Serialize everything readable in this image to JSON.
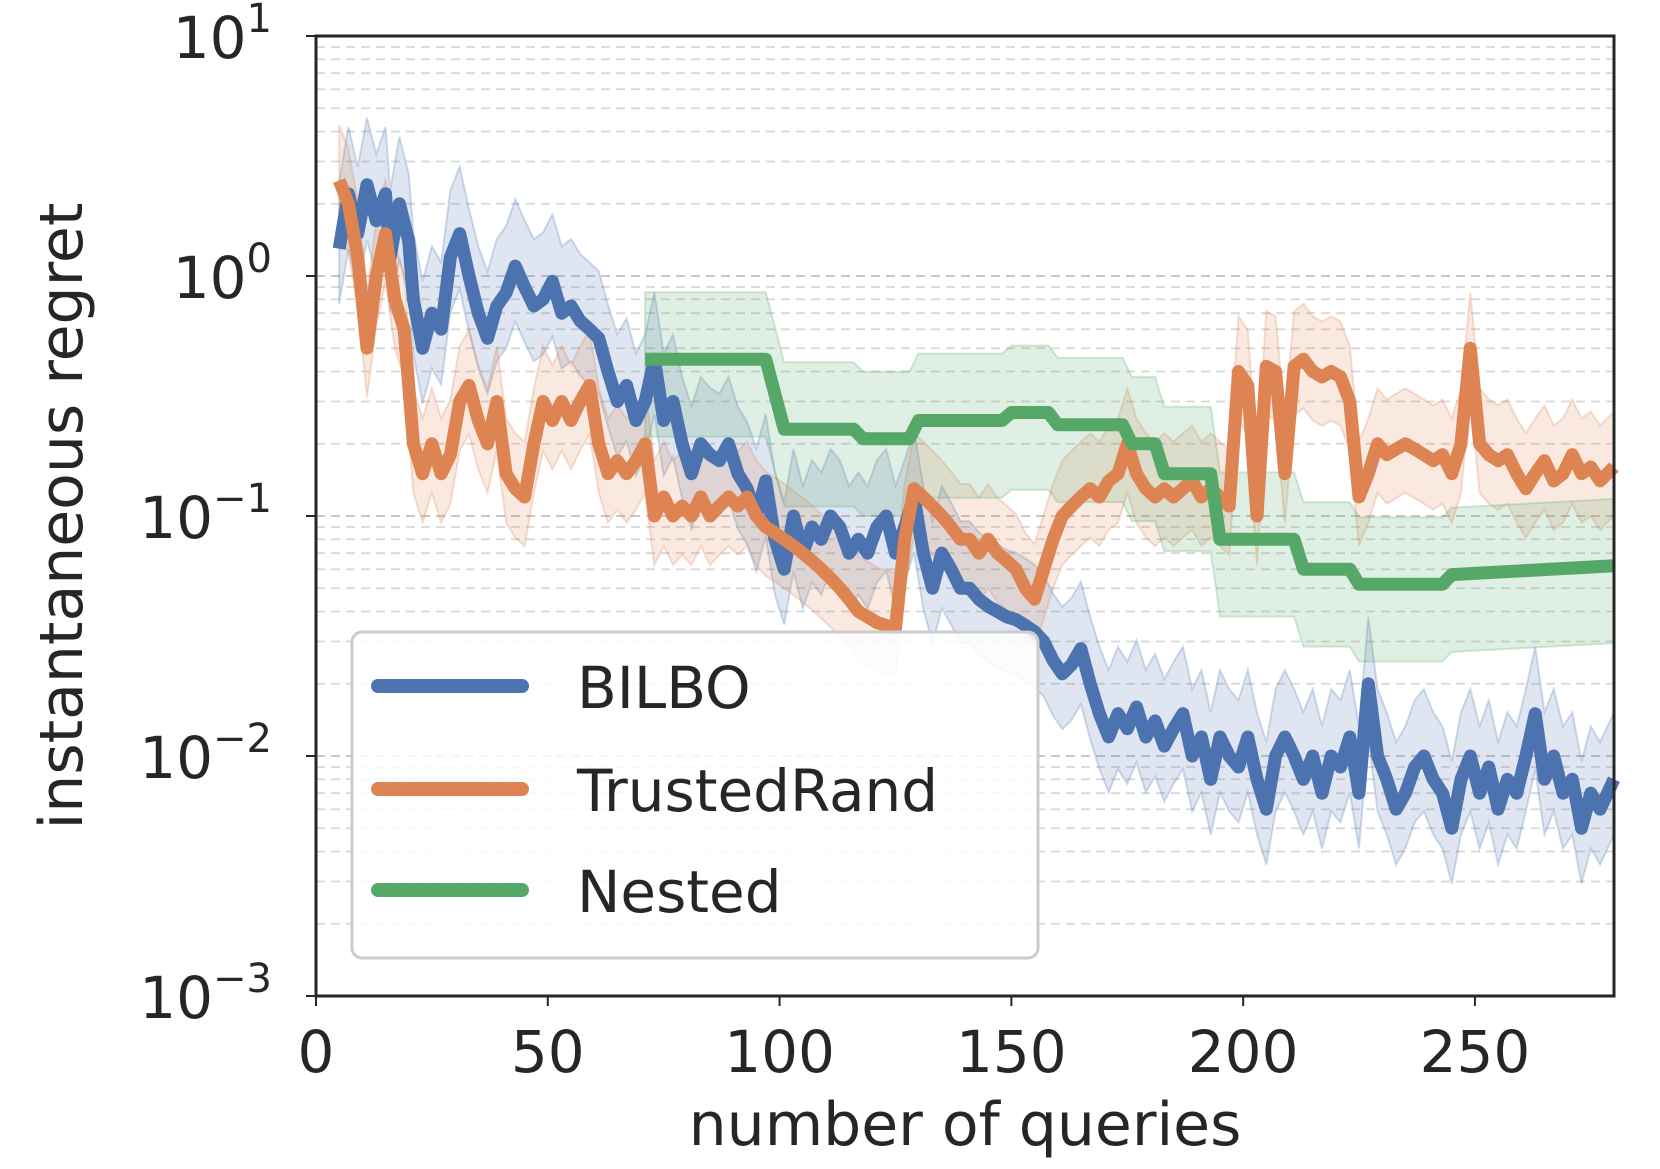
{
  "chart_data": {
    "type": "line",
    "title": "",
    "xlabel": "number of queries",
    "ylabel": "instantaneous regret",
    "xscale": "linear",
    "yscale": "log",
    "xlim": [
      0,
      280
    ],
    "ylim": [
      0.001,
      10
    ],
    "xticks": [
      "0",
      "50",
      "100",
      "150",
      "200",
      "250"
    ],
    "xtick_values": [
      0,
      50,
      100,
      150,
      200,
      250
    ],
    "yticks": [
      {
        "base": "10",
        "exp": "−3",
        "value": 0.001
      },
      {
        "base": "10",
        "exp": "−2",
        "value": 0.01
      },
      {
        "base": "10",
        "exp": "−1",
        "value": 0.1
      },
      {
        "base": "10",
        "exp": "0",
        "value": 1
      },
      {
        "base": "10",
        "exp": "1",
        "value": 10
      }
    ],
    "grid": "horizontal dashed (major and minor)",
    "legend_position": "lower-left",
    "series": [
      {
        "name": "BILBO",
        "color": "#4c72b0",
        "band": "shaded uncertainty band",
        "points": [
          [
            5,
            1.3
          ],
          [
            7,
            2.2
          ],
          [
            9,
            1.5
          ],
          [
            11,
            2.4
          ],
          [
            13,
            1.7
          ],
          [
            15,
            2.2
          ],
          [
            16,
            1.2
          ],
          [
            18,
            2.0
          ],
          [
            20,
            1.4
          ],
          [
            21,
            0.8
          ],
          [
            23,
            0.5
          ],
          [
            25,
            0.7
          ],
          [
            27,
            0.6
          ],
          [
            29,
            1.2
          ],
          [
            31,
            1.5
          ],
          [
            33,
            1.0
          ],
          [
            35,
            0.7
          ],
          [
            37,
            0.55
          ],
          [
            39,
            0.75
          ],
          [
            41,
            0.85
          ],
          [
            43,
            1.1
          ],
          [
            45,
            0.9
          ],
          [
            47,
            0.75
          ],
          [
            49,
            0.8
          ],
          [
            51,
            0.95
          ],
          [
            53,
            0.7
          ],
          [
            55,
            0.75
          ],
          [
            57,
            0.65
          ],
          [
            59,
            0.6
          ],
          [
            61,
            0.55
          ],
          [
            63,
            0.4
          ],
          [
            65,
            0.3
          ],
          [
            67,
            0.35
          ],
          [
            69,
            0.25
          ],
          [
            71,
            0.3
          ],
          [
            73,
            0.45
          ],
          [
            75,
            0.25
          ],
          [
            77,
            0.3
          ],
          [
            79,
            0.2
          ],
          [
            81,
            0.15
          ],
          [
            83,
            0.2
          ],
          [
            85,
            0.18
          ],
          [
            87,
            0.17
          ],
          [
            89,
            0.2
          ],
          [
            91,
            0.15
          ],
          [
            93,
            0.13
          ],
          [
            95,
            0.1
          ],
          [
            97,
            0.14
          ],
          [
            99,
            0.08
          ],
          [
            101,
            0.06
          ],
          [
            103,
            0.1
          ],
          [
            105,
            0.07
          ],
          [
            107,
            0.09
          ],
          [
            109,
            0.08
          ],
          [
            111,
            0.1
          ],
          [
            113,
            0.09
          ],
          [
            115,
            0.07
          ],
          [
            117,
            0.08
          ],
          [
            119,
            0.07
          ],
          [
            121,
            0.09
          ],
          [
            123,
            0.1
          ],
          [
            125,
            0.07
          ],
          [
            127,
            0.09
          ],
          [
            129,
            0.12
          ],
          [
            131,
            0.07
          ],
          [
            133,
            0.05
          ],
          [
            135,
            0.07
          ],
          [
            137,
            0.06
          ],
          [
            139,
            0.05
          ],
          [
            141,
            0.05
          ],
          [
            143,
            0.045
          ],
          [
            145,
            0.042
          ],
          [
            147,
            0.04
          ],
          [
            149,
            0.038
          ],
          [
            151,
            0.037
          ],
          [
            153,
            0.035
          ],
          [
            155,
            0.033
          ],
          [
            157,
            0.03
          ],
          [
            159,
            0.025
          ],
          [
            161,
            0.022
          ],
          [
            163,
            0.024
          ],
          [
            165,
            0.028
          ],
          [
            167,
            0.02
          ],
          [
            169,
            0.015
          ],
          [
            171,
            0.012
          ],
          [
            173,
            0.015
          ],
          [
            175,
            0.013
          ],
          [
            177,
            0.016
          ],
          [
            179,
            0.012
          ],
          [
            181,
            0.014
          ],
          [
            183,
            0.011
          ],
          [
            185,
            0.013
          ],
          [
            187,
            0.015
          ],
          [
            189,
            0.01
          ],
          [
            191,
            0.012
          ],
          [
            193,
            0.008
          ],
          [
            195,
            0.012
          ],
          [
            197,
            0.01
          ],
          [
            199,
            0.009
          ],
          [
            201,
            0.012
          ],
          [
            203,
            0.008
          ],
          [
            205,
            0.006
          ],
          [
            207,
            0.01
          ],
          [
            209,
            0.012
          ],
          [
            211,
            0.01
          ],
          [
            213,
            0.008
          ],
          [
            215,
            0.01
          ],
          [
            217,
            0.007
          ],
          [
            219,
            0.01
          ],
          [
            221,
            0.009
          ],
          [
            223,
            0.012
          ],
          [
            225,
            0.007
          ],
          [
            227,
            0.02
          ],
          [
            229,
            0.01
          ],
          [
            231,
            0.008
          ],
          [
            233,
            0.006
          ],
          [
            235,
            0.007
          ],
          [
            237,
            0.009
          ],
          [
            239,
            0.01
          ],
          [
            241,
            0.008
          ],
          [
            243,
            0.007
          ],
          [
            245,
            0.005
          ],
          [
            247,
            0.008
          ],
          [
            249,
            0.01
          ],
          [
            251,
            0.007
          ],
          [
            253,
            0.009
          ],
          [
            255,
            0.006
          ],
          [
            257,
            0.008
          ],
          [
            259,
            0.007
          ],
          [
            261,
            0.01
          ],
          [
            263,
            0.015
          ],
          [
            265,
            0.008
          ],
          [
            267,
            0.01
          ],
          [
            269,
            0.007
          ],
          [
            271,
            0.008
          ],
          [
            273,
            0.005
          ],
          [
            275,
            0.007
          ],
          [
            277,
            0.006
          ],
          [
            280,
            0.008
          ]
        ]
      },
      {
        "name": "TrustedRand",
        "color": "#dd8452",
        "band": "shaded uncertainty band",
        "points": [
          [
            5,
            2.5
          ],
          [
            7,
            2.0
          ],
          [
            9,
            1.2
          ],
          [
            11,
            0.5
          ],
          [
            13,
            1.0
          ],
          [
            15,
            1.5
          ],
          [
            17,
            0.8
          ],
          [
            19,
            0.6
          ],
          [
            21,
            0.2
          ],
          [
            23,
            0.15
          ],
          [
            25,
            0.2
          ],
          [
            27,
            0.15
          ],
          [
            29,
            0.18
          ],
          [
            31,
            0.3
          ],
          [
            33,
            0.35
          ],
          [
            35,
            0.25
          ],
          [
            37,
            0.2
          ],
          [
            39,
            0.3
          ],
          [
            41,
            0.15
          ],
          [
            43,
            0.13
          ],
          [
            45,
            0.12
          ],
          [
            47,
            0.2
          ],
          [
            49,
            0.3
          ],
          [
            51,
            0.25
          ],
          [
            53,
            0.3
          ],
          [
            55,
            0.25
          ],
          [
            57,
            0.3
          ],
          [
            59,
            0.35
          ],
          [
            61,
            0.2
          ],
          [
            63,
            0.15
          ],
          [
            65,
            0.17
          ],
          [
            67,
            0.15
          ],
          [
            69,
            0.17
          ],
          [
            71,
            0.2
          ],
          [
            73,
            0.1
          ],
          [
            75,
            0.12
          ],
          [
            77,
            0.1
          ],
          [
            79,
            0.11
          ],
          [
            81,
            0.1
          ],
          [
            83,
            0.12
          ],
          [
            85,
            0.1
          ],
          [
            87,
            0.11
          ],
          [
            89,
            0.12
          ],
          [
            91,
            0.11
          ],
          [
            93,
            0.12
          ],
          [
            95,
            0.1
          ],
          [
            97,
            0.09
          ],
          [
            99,
            0.085
          ],
          [
            101,
            0.08
          ],
          [
            103,
            0.075
          ],
          [
            105,
            0.07
          ],
          [
            107,
            0.065
          ],
          [
            109,
            0.06
          ],
          [
            111,
            0.055
          ],
          [
            113,
            0.05
          ],
          [
            115,
            0.045
          ],
          [
            117,
            0.04
          ],
          [
            119,
            0.038
          ],
          [
            121,
            0.036
          ],
          [
            123,
            0.035
          ],
          [
            125,
            0.034
          ],
          [
            127,
            0.08
          ],
          [
            129,
            0.13
          ],
          [
            131,
            0.12
          ],
          [
            133,
            0.11
          ],
          [
            135,
            0.1
          ],
          [
            137,
            0.09
          ],
          [
            139,
            0.08
          ],
          [
            141,
            0.08
          ],
          [
            143,
            0.07
          ],
          [
            145,
            0.08
          ],
          [
            147,
            0.07
          ],
          [
            149,
            0.065
          ],
          [
            151,
            0.06
          ],
          [
            153,
            0.05
          ],
          [
            155,
            0.045
          ],
          [
            157,
            0.06
          ],
          [
            159,
            0.08
          ],
          [
            161,
            0.1
          ],
          [
            163,
            0.11
          ],
          [
            165,
            0.12
          ],
          [
            167,
            0.13
          ],
          [
            169,
            0.12
          ],
          [
            171,
            0.14
          ],
          [
            173,
            0.15
          ],
          [
            175,
            0.2
          ],
          [
            177,
            0.15
          ],
          [
            179,
            0.13
          ],
          [
            181,
            0.12
          ],
          [
            183,
            0.13
          ],
          [
            185,
            0.12
          ],
          [
            187,
            0.13
          ],
          [
            189,
            0.14
          ],
          [
            191,
            0.12
          ],
          [
            193,
            0.13
          ],
          [
            195,
            0.12
          ],
          [
            197,
            0.11
          ],
          [
            199,
            0.4
          ],
          [
            201,
            0.35
          ],
          [
            203,
            0.1
          ],
          [
            205,
            0.42
          ],
          [
            207,
            0.4
          ],
          [
            209,
            0.15
          ],
          [
            211,
            0.42
          ],
          [
            213,
            0.45
          ],
          [
            215,
            0.4
          ],
          [
            217,
            0.38
          ],
          [
            219,
            0.4
          ],
          [
            221,
            0.38
          ],
          [
            223,
            0.3
          ],
          [
            225,
            0.12
          ],
          [
            227,
            0.15
          ],
          [
            229,
            0.2
          ],
          [
            231,
            0.18
          ],
          [
            233,
            0.19
          ],
          [
            235,
            0.2
          ],
          [
            237,
            0.19
          ],
          [
            239,
            0.18
          ],
          [
            241,
            0.17
          ],
          [
            243,
            0.18
          ],
          [
            245,
            0.15
          ],
          [
            247,
            0.2
          ],
          [
            249,
            0.5
          ],
          [
            251,
            0.2
          ],
          [
            253,
            0.18
          ],
          [
            255,
            0.17
          ],
          [
            257,
            0.18
          ],
          [
            259,
            0.15
          ],
          [
            261,
            0.13
          ],
          [
            263,
            0.15
          ],
          [
            265,
            0.17
          ],
          [
            267,
            0.14
          ],
          [
            269,
            0.15
          ],
          [
            271,
            0.18
          ],
          [
            273,
            0.15
          ],
          [
            275,
            0.16
          ],
          [
            277,
            0.14
          ],
          [
            280,
            0.16
          ]
        ]
      },
      {
        "name": "Nested",
        "color": "#55a868",
        "band": "shaded uncertainty band",
        "points": [
          [
            71,
            0.45
          ],
          [
            97,
            0.45
          ],
          [
            101,
            0.23
          ],
          [
            116,
            0.23
          ],
          [
            118,
            0.21
          ],
          [
            128,
            0.21
          ],
          [
            130,
            0.25
          ],
          [
            148,
            0.25
          ],
          [
            150,
            0.27
          ],
          [
            158,
            0.27
          ],
          [
            160,
            0.24
          ],
          [
            174,
            0.24
          ],
          [
            176,
            0.2
          ],
          [
            181,
            0.2
          ],
          [
            183,
            0.15
          ],
          [
            193,
            0.15
          ],
          [
            195,
            0.08
          ],
          [
            211,
            0.08
          ],
          [
            213,
            0.06
          ],
          [
            223,
            0.06
          ],
          [
            225,
            0.052
          ],
          [
            243,
            0.052
          ],
          [
            245,
            0.057
          ],
          [
            280,
            0.062
          ]
        ]
      }
    ]
  }
}
